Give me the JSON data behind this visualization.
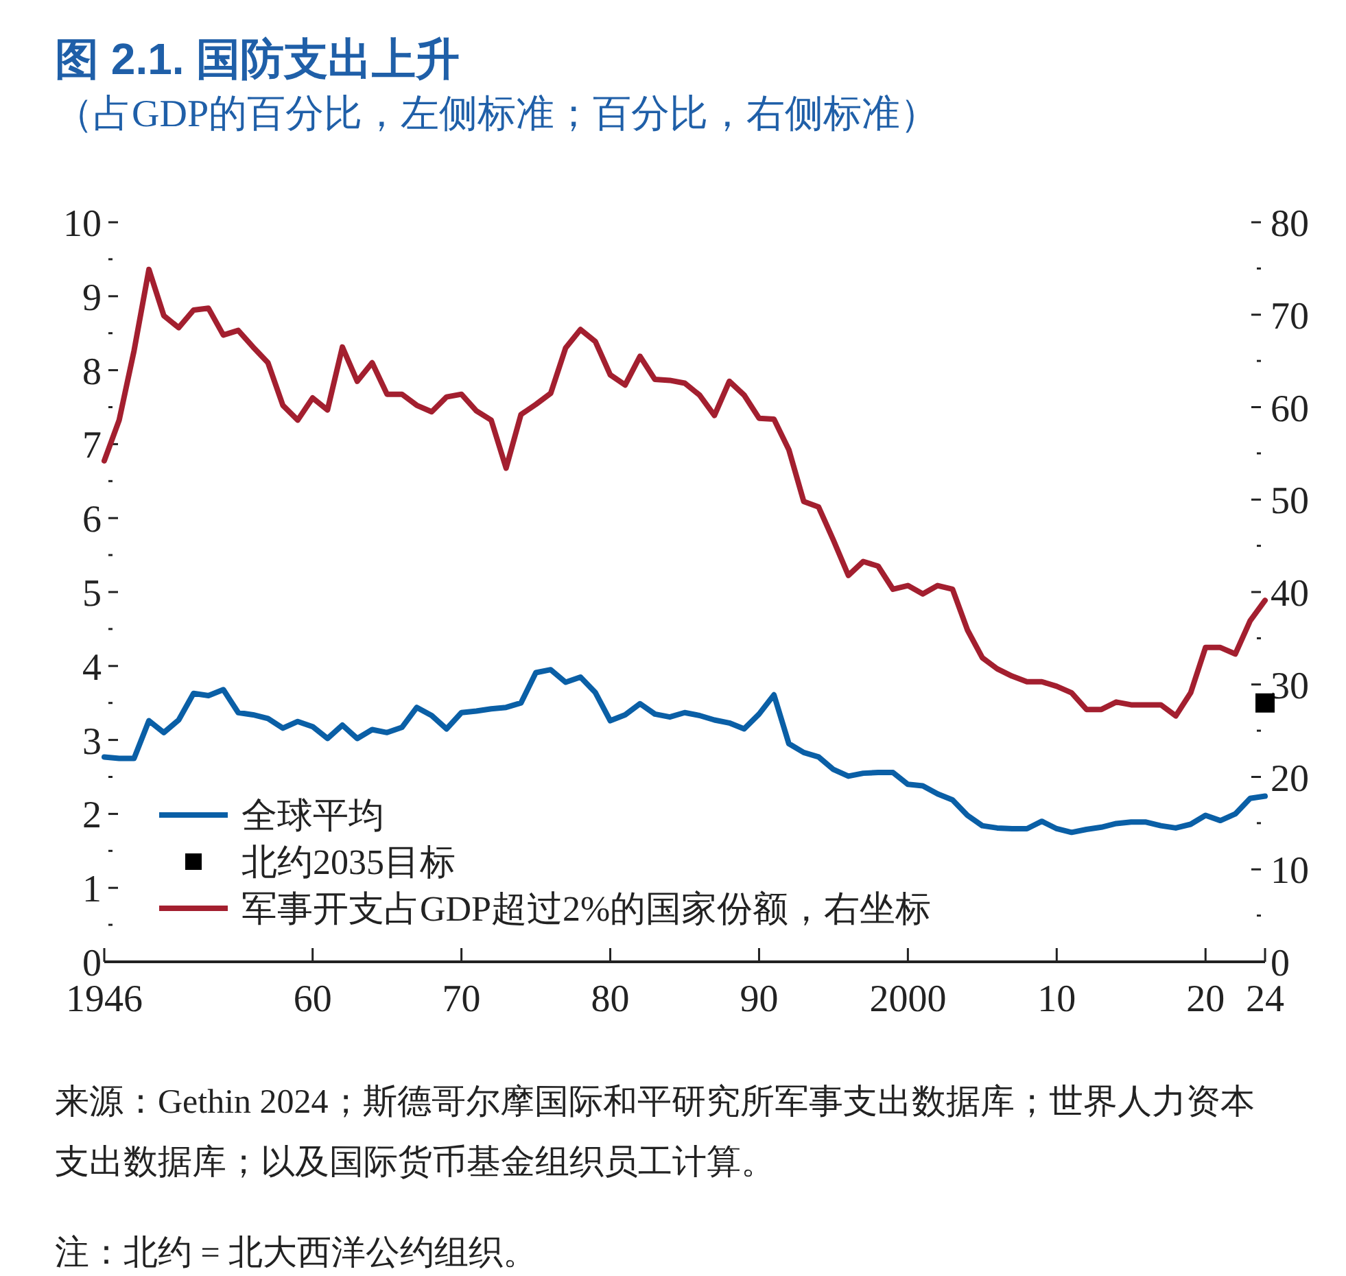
{
  "chart_data": {
    "type": "line",
    "title": "图 2.1. 国防支出上升",
    "subtitle": "（占GDP的百分比，左侧标准；百分比，右侧标准）",
    "xlim": [
      1946,
      2024
    ],
    "xticks": [
      {
        "value": 1946,
        "label": "1946"
      },
      {
        "value": 1960,
        "label": "60"
      },
      {
        "value": 1970,
        "label": "70"
      },
      {
        "value": 1980,
        "label": "80"
      },
      {
        "value": 1990,
        "label": "90"
      },
      {
        "value": 2000,
        "label": "2000"
      },
      {
        "value": 2010,
        "label": "10"
      },
      {
        "value": 2020,
        "label": "20"
      },
      {
        "value": 2024,
        "label": "24"
      }
    ],
    "ylim": [
      0,
      10
    ],
    "yticks": [
      0,
      {
        "value": 0.5,
        "label": null
      },
      1,
      {
        "value": 1.5,
        "label": null
      },
      2,
      {
        "value": 2.5,
        "label": null
      },
      3,
      {
        "value": 3.5,
        "label": null
      },
      4,
      {
        "value": 4.5,
        "label": null
      },
      5,
      {
        "value": 5.5,
        "label": null
      },
      6,
      {
        "value": 6.5,
        "label": null
      },
      7,
      {
        "value": 7.5,
        "label": null
      },
      8,
      {
        "value": 8.5,
        "label": null
      },
      9,
      {
        "value": 9.5,
        "label": null
      },
      10
    ],
    "y2lim": [
      0,
      80
    ],
    "y2ticks": [
      0,
      {
        "value": 5,
        "label": null
      },
      10,
      {
        "value": 15,
        "label": null
      },
      20,
      {
        "value": 25,
        "label": null
      },
      30,
      {
        "value": 35,
        "label": null
      },
      40,
      {
        "value": 45,
        "label": null
      },
      50,
      {
        "value": 55,
        "label": null
      },
      60,
      {
        "value": 65,
        "label": null
      },
      70,
      {
        "value": 75,
        "label": null
      },
      80
    ],
    "legend": "bottom left",
    "series": [
      {
        "name": "全球平均",
        "color": "#0a5fa6",
        "x": [
          1946,
          1947,
          1948,
          1949,
          1950,
          1951,
          1952,
          1953,
          1954,
          1955,
          1956,
          1957,
          1958,
          1959,
          1960,
          1961,
          1962,
          1963,
          1964,
          1965,
          1966,
          1967,
          1968,
          1969,
          1970,
          1971,
          1972,
          1973,
          1974,
          1975,
          1976,
          1977,
          1978,
          1979,
          1980,
          1981,
          1982,
          1983,
          1984,
          1985,
          1986,
          1987,
          1988,
          1989,
          1990,
          1991,
          1992,
          1993,
          1994,
          1995,
          1996,
          1997,
          1998,
          1999,
          2000,
          2001,
          2002,
          2003,
          2004,
          2005,
          2006,
          2007,
          2008,
          2009,
          2010,
          2011,
          2012,
          2013,
          2014,
          2015,
          2016,
          2017,
          2018,
          2019,
          2020,
          2021,
          2022,
          2023,
          2024
        ],
        "values": [
          2.77,
          2.75,
          2.75,
          3.26,
          3.1,
          3.27,
          3.63,
          3.6,
          3.68,
          3.37,
          3.34,
          3.29,
          3.16,
          3.25,
          3.18,
          3.02,
          3.2,
          3.02,
          3.14,
          3.1,
          3.17,
          3.44,
          3.33,
          3.15,
          3.37,
          3.39,
          3.42,
          3.44,
          3.5,
          3.91,
          3.95,
          3.78,
          3.85,
          3.64,
          3.26,
          3.34,
          3.49,
          3.35,
          3.31,
          3.37,
          3.33,
          3.27,
          3.23,
          3.15,
          3.35,
          3.61,
          2.95,
          2.83,
          2.77,
          2.6,
          2.51,
          2.55,
          2.56,
          2.56,
          2.4,
          2.38,
          2.27,
          2.19,
          1.98,
          1.84,
          1.81,
          1.8,
          1.8,
          1.9,
          1.8,
          1.75,
          1.79,
          1.82,
          1.87,
          1.89,
          1.89,
          1.84,
          1.81,
          1.86,
          1.98,
          1.91,
          2.0,
          2.21,
          2.24
        ]
      },
      {
        "name": "北约2035目标",
        "type": "scatter",
        "marker": "square",
        "color": "#000000",
        "x": [
          2024
        ],
        "values": [
          3.5
        ]
      },
      {
        "name": "军事开支占GDP超过2%的国家份额，右坐标",
        "axis": "y2",
        "color": "#a31f2f",
        "x": [
          1946,
          1947,
          1948,
          1949,
          1950,
          1951,
          1952,
          1953,
          1954,
          1955,
          1956,
          1957,
          1958,
          1959,
          1960,
          1961,
          1962,
          1963,
          1964,
          1965,
          1966,
          1967,
          1968,
          1969,
          1970,
          1971,
          1972,
          1973,
          1974,
          1975,
          1976,
          1977,
          1978,
          1979,
          1980,
          1981,
          1982,
          1983,
          1984,
          1985,
          1986,
          1987,
          1988,
          1989,
          1990,
          1991,
          1992,
          1993,
          1994,
          1995,
          1996,
          1997,
          1998,
          1999,
          2000,
          2001,
          2002,
          2003,
          2004,
          2005,
          2006,
          2007,
          2008,
          2009,
          2010,
          2011,
          2012,
          2013,
          2014,
          2015,
          2016,
          2017,
          2018,
          2019,
          2020,
          2021,
          2022,
          2023,
          2024
        ],
        "values": [
          54.2,
          58.6,
          66.1,
          74.9,
          69.9,
          68.6,
          70.5,
          70.7,
          67.8,
          68.3,
          66.5,
          64.8,
          60.2,
          58.6,
          61.0,
          59.7,
          66.5,
          62.8,
          64.8,
          61.4,
          61.4,
          60.2,
          59.5,
          61.1,
          61.4,
          59.6,
          58.6,
          53.4,
          59.2,
          60.3,
          61.5,
          66.4,
          68.4,
          67.1,
          63.5,
          62.4,
          65.5,
          63.0,
          62.9,
          62.6,
          61.3,
          59.1,
          62.8,
          61.3,
          58.8,
          58.7,
          55.4,
          49.8,
          49.2,
          45.6,
          41.8,
          43.3,
          42.8,
          40.3,
          40.7,
          39.8,
          40.7,
          40.3,
          35.9,
          32.9,
          31.7,
          30.9,
          30.3,
          30.3,
          29.8,
          29.1,
          27.3,
          27.3,
          28.1,
          27.8,
          27.8,
          27.8,
          26.6,
          29.1,
          34.0,
          34.0,
          33.3,
          36.9,
          39.1
        ]
      }
    ],
    "annotations": [
      "来源：Gethin 2024；斯德哥尔摩国际和平研究所军事支出数据库；世界人力资本支出数据库；以及国际货币基金组织员工计算。",
      "注：北约 = 北大西洋公约组织。"
    ]
  }
}
